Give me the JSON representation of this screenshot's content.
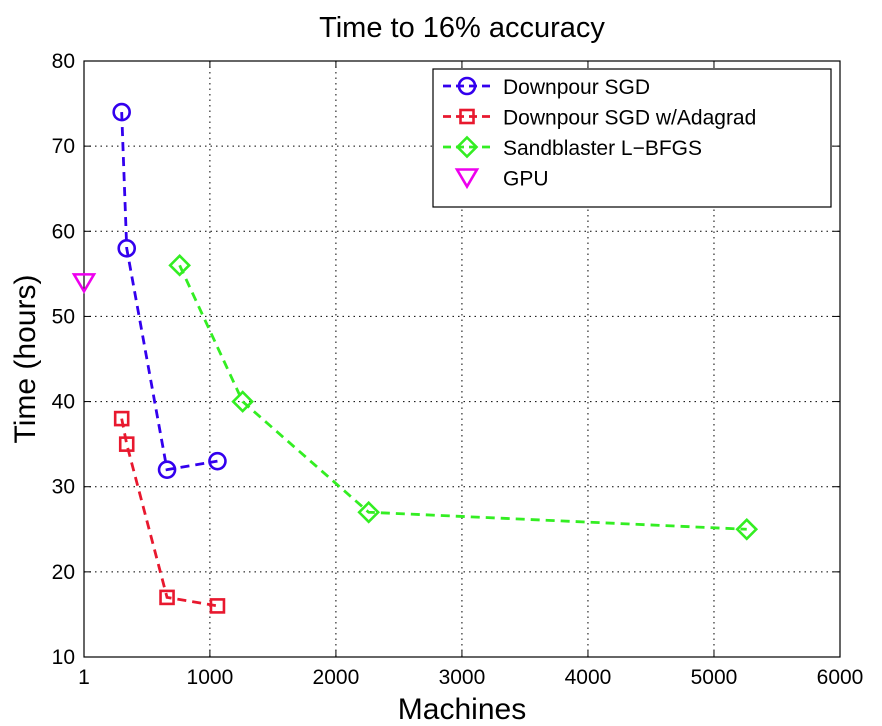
{
  "chart_data": {
    "type": "line",
    "title": "Time to 16% accuracy",
    "xlabel": "Machines",
    "ylabel": "Time (hours)",
    "xlim": [
      1,
      6000
    ],
    "ylim": [
      10,
      80
    ],
    "x_ticks": [
      1,
      1000,
      2000,
      3000,
      4000,
      5000,
      6000
    ],
    "x_tick_labels": [
      "1",
      "1000",
      "2000",
      "3000",
      "4000",
      "5000",
      "6000"
    ],
    "y_ticks": [
      10,
      20,
      30,
      40,
      50,
      60,
      70,
      80
    ],
    "y_tick_labels": [
      "10",
      "20",
      "30",
      "40",
      "50",
      "60",
      "70",
      "80"
    ],
    "grid": true,
    "legend_position": "top-right",
    "series": [
      {
        "name": "Downpour SGD",
        "color": "#3300ee",
        "marker": "circle",
        "line": "dashed",
        "points": [
          [
            300,
            74
          ],
          [
            340,
            58
          ],
          [
            660,
            32
          ],
          [
            1060,
            33
          ]
        ]
      },
      {
        "name": "Downpour SGD w/Adagrad",
        "color": "#e8182e",
        "marker": "square",
        "line": "dashed",
        "points": [
          [
            300,
            38
          ],
          [
            340,
            35
          ],
          [
            660,
            17
          ],
          [
            1060,
            16
          ]
        ]
      },
      {
        "name": "Sandblaster L−BFGS",
        "color": "#33ee22",
        "marker": "diamond",
        "line": "dashed",
        "points": [
          [
            760,
            56
          ],
          [
            1260,
            40
          ],
          [
            2260,
            27
          ],
          [
            5260,
            25
          ]
        ]
      },
      {
        "name": "GPU",
        "color": "#ee00ee",
        "marker": "triangle-down",
        "line": "none",
        "points": [
          [
            1,
            54
          ]
        ]
      }
    ]
  }
}
